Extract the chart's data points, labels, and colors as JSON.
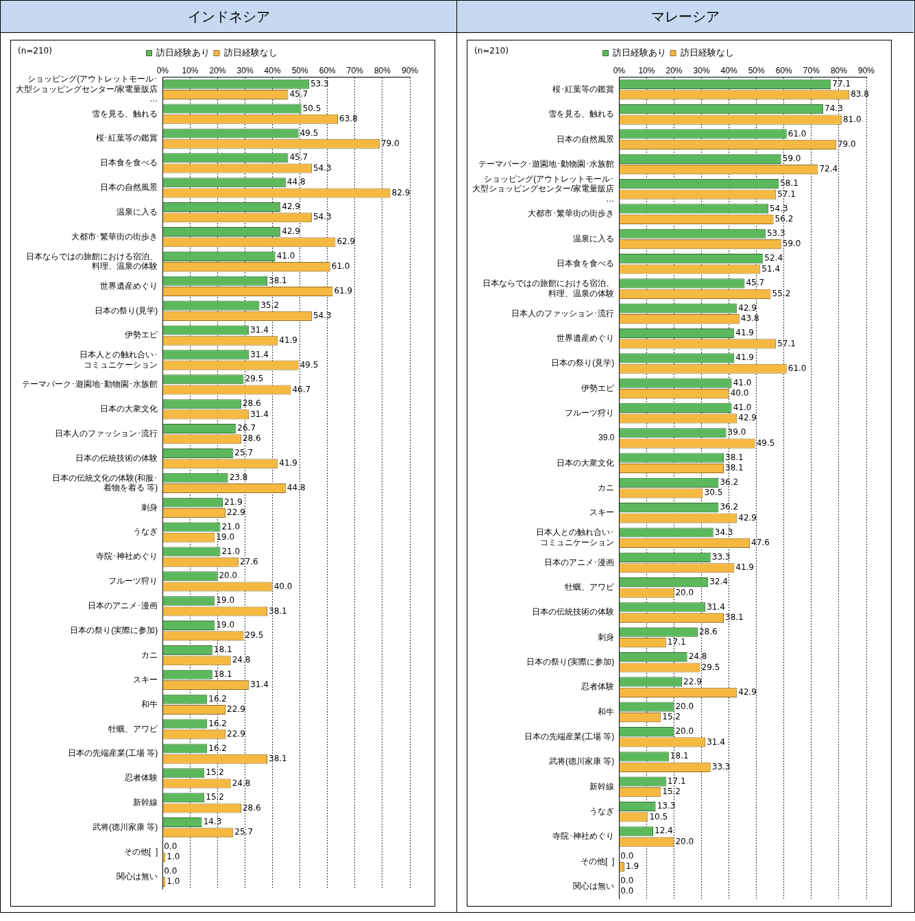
{
  "chart_data": [
    {
      "type": "bar",
      "orientation": "horizontal",
      "title": "インドネシア",
      "annotations": [
        "(n=210)"
      ],
      "categories": [
        "ショッピング(アウトレットモール･大型ショッピングセンター/家電量販店…",
        "雪を見る、触れる",
        "桜･紅葉等の鑑賞",
        "日本食を食べる",
        "日本の自然風景",
        "温泉に入る",
        "大都市･繁華街の街歩き",
        "日本ならではの旅館における宿泊、料理、温泉の体験",
        "世界遺産めぐり",
        "日本の祭り(見学)",
        "伊勢エビ",
        "日本人との触れ合い･コミュニケーション",
        "テーマパーク･遊園地･動物園･水族館",
        "日本の大衆文化",
        "日本人のファッション･流行",
        "日本の伝統技術の体験",
        "日本の伝統文化の体験(和服･着物を着る 等)",
        "刺身",
        "うなぎ",
        "寺院･神社めぐり",
        "フルーツ狩り",
        "日本のアニメ･漫画",
        "日本の祭り(実際に参加)",
        "カニ",
        "スキー",
        "和牛",
        "牡蠣、アワビ",
        "日本の先端産業(工場 等)",
        "忍者体験",
        "新幹線",
        "武将(徳川家康 等)",
        "その他[  ]",
        "関心は無い"
      ],
      "series": [
        {
          "name": "訪日経験あり",
          "color": "#5cb85c",
          "values": [
            53.3,
            50.5,
            49.5,
            45.7,
            44.8,
            42.9,
            42.9,
            41.0,
            38.1,
            35.2,
            31.4,
            31.4,
            29.5,
            28.6,
            26.7,
            25.7,
            23.8,
            21.9,
            21.0,
            21.0,
            20.0,
            19.0,
            19.0,
            18.1,
            18.1,
            16.2,
            16.2,
            16.2,
            15.2,
            15.2,
            14.3,
            0.0,
            0.0
          ],
          "value_labels": [
            "53.3",
            "50.5",
            "49.5",
            "45.7",
            "44.8",
            "42.9",
            "42.9",
            "41.0",
            "38.1",
            "35.2",
            "31.4",
            "31.4",
            "29.5",
            "28.6",
            "26.7",
            "25.7",
            "23.8",
            "21.9",
            "21.0",
            "21.0",
            "20.0",
            "19.0",
            "19.0",
            "18.1",
            "18.1",
            "16.2",
            "16.2",
            "16.2",
            "15.2",
            "15.2",
            "14.3",
            "0.0",
            "0.0"
          ]
        },
        {
          "name": "訪日経験なし",
          "color": "#f5b942",
          "values": [
            45.7,
            63.8,
            79.0,
            54.3,
            82.9,
            54.3,
            62.9,
            61.0,
            61.9,
            54.3,
            41.9,
            49.5,
            46.7,
            31.4,
            28.6,
            41.9,
            44.8,
            22.9,
            19.0,
            27.6,
            40.0,
            38.1,
            29.5,
            24.8,
            31.4,
            22.9,
            22.9,
            38.1,
            24.8,
            28.6,
            25.7,
            1.0,
            1.0
          ],
          "value_labels": [
            "45.7",
            "63.8",
            "79.0",
            "54.3",
            "82.9",
            "54.3",
            "62.9",
            "61.0",
            "61.9",
            "54.3",
            "41.9",
            "49.5",
            "46.7",
            "31.4",
            "28.6",
            "41.9",
            "44.8",
            "22.9",
            "19.0",
            "27.6",
            "40.0",
            "38.1",
            "29.5",
            "24.8",
            "31.4",
            "22.9",
            "22.9",
            "38.1",
            "24.8",
            "28.6",
            "25.7",
            "1.0",
            "1.0"
          ]
        }
      ],
      "xlim": [
        0,
        90
      ],
      "xticks": [
        {
          "value": 0,
          "label": "0%"
        },
        {
          "value": 10,
          "label": "10%"
        },
        {
          "value": 20,
          "label": "20%"
        },
        {
          "value": 30,
          "label": "30%"
        },
        {
          "value": 40,
          "label": "40%"
        },
        {
          "value": 50,
          "label": "50%"
        },
        {
          "value": 60,
          "label": "60%"
        },
        {
          "value": 70,
          "label": "70%"
        },
        {
          "value": 80,
          "label": "80%"
        },
        {
          "value": 90,
          "label": "90%"
        }
      ],
      "grid": "x",
      "legend": "top"
    },
    {
      "type": "bar",
      "orientation": "horizontal",
      "title": "マレーシア",
      "annotations": [
        "(n=210)"
      ],
      "categories": [
        "桜･紅葉等の鑑賞",
        "雪を見る、触れる",
        "日本の自然風景",
        "テーマパーク･遊園地･動物園･水族館",
        "ショッピング(アウトレットモール･大型ショッピングセンター/家電量販店…",
        "大都市･繁華街の街歩き",
        "温泉に入る",
        "日本食を食べる",
        "日本ならではの旅館における宿泊、料理、温泉の体験",
        "日本人のファッション･流行",
        "世界遺産めぐり",
        "日本の祭り(見学)",
        "伊勢エビ",
        "フルーツ狩り",
        "39.0",
        "日本の大衆文化",
        "カニ",
        "スキー",
        "日本人との触れ合い･コミュニケーション",
        "日本のアニメ･漫画",
        "牡蠣、アワビ",
        "日本の伝統技術の体験",
        "刺身",
        "日本の祭り(実際に参加)",
        "忍者体験",
        "和牛",
        "日本の先端産業(工場 等)",
        "武将(徳川家康 等)",
        "新幹線",
        "うなぎ",
        "寺院･神社めぐり",
        "その他[  ]",
        "関心は無い"
      ],
      "series": [
        {
          "name": "訪日経験あり",
          "color": "#5cb85c",
          "values": [
            77.1,
            74.3,
            61.0,
            59.0,
            58.1,
            54.3,
            53.3,
            52.4,
            45.7,
            42.9,
            41.9,
            41.9,
            41.0,
            41.0,
            39.0,
            38.1,
            36.2,
            36.2,
            34.3,
            33.3,
            32.4,
            31.4,
            28.6,
            24.8,
            22.9,
            20.0,
            20.0,
            18.1,
            17.1,
            13.3,
            12.4,
            0.0,
            0.0
          ],
          "value_labels": [
            "77.1",
            "74.3",
            "61.0",
            "59.0",
            "58.1",
            "54.3",
            "53.3",
            "52.4",
            "45.7",
            "42.9",
            "41.9",
            "41.9",
            "41.0",
            "41.0",
            "39.0",
            "38.1",
            "36.2",
            "36.2",
            "34.3",
            "33.3",
            "32.4",
            "31.4",
            "28.6",
            "24.8",
            "22.9",
            "20.0",
            "20.0",
            "18.1",
            "17.1",
            "13.3",
            "12.4",
            "0.0",
            "0.0"
          ]
        },
        {
          "name": "訪日経験なし",
          "color": "#f5b942",
          "values": [
            83.8,
            81.0,
            79.0,
            72.4,
            57.1,
            56.2,
            59.0,
            51.4,
            55.2,
            43.8,
            57.1,
            61.0,
            40.0,
            42.9,
            49.5,
            38.1,
            30.5,
            42.9,
            47.6,
            41.9,
            20.0,
            38.1,
            17.1,
            29.5,
            42.9,
            15.2,
            31.4,
            33.3,
            15.2,
            10.5,
            20.0,
            1.9,
            0.0
          ],
          "value_labels": [
            "83.8",
            "81.0",
            "79.0",
            "72.4",
            "57.1",
            "56.2",
            "59.0",
            "51.4",
            "55.2",
            "43.8",
            "57.1",
            "61.0",
            "40.0",
            "42.9",
            "49.5",
            "38.1",
            "30.5",
            "42.9",
            "47.6",
            "41.9",
            "20.0",
            "38.1",
            "17.1",
            "29.5",
            "42.9",
            "15.2",
            "31.4",
            "33.3",
            "15.2",
            "10.5",
            "20.0",
            "1.9",
            "0.0"
          ]
        }
      ],
      "xlim": [
        0,
        90
      ],
      "xticks": [
        {
          "value": 0,
          "label": "0%"
        },
        {
          "value": 10,
          "label": "10%"
        },
        {
          "value": 20,
          "label": "20%"
        },
        {
          "value": 30,
          "label": "30%"
        },
        {
          "value": 40,
          "label": "40%"
        },
        {
          "value": 50,
          "label": "50%"
        },
        {
          "value": 60,
          "label": "60%"
        },
        {
          "value": 70,
          "label": "70%"
        },
        {
          "value": 80,
          "label": "80%"
        },
        {
          "value": 90,
          "label": "90%"
        }
      ],
      "grid": "x",
      "legend": "top"
    }
  ]
}
